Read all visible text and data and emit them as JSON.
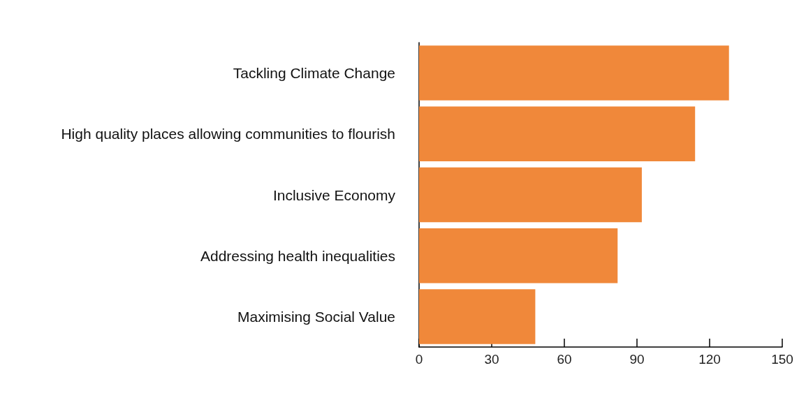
{
  "chart_data": {
    "type": "bar",
    "orientation": "horizontal",
    "categories": [
      "Tackling Climate Change",
      "High quality places allowing communities to flourish",
      "Inclusive Economy",
      "Addressing health inequalities",
      "Maximising Social Value"
    ],
    "values": [
      128,
      114,
      92,
      82,
      48
    ],
    "color": "#f0883a",
    "xlim": [
      0,
      150
    ],
    "xticks": [
      0,
      30,
      60,
      90,
      120,
      150
    ],
    "grid": false
  }
}
